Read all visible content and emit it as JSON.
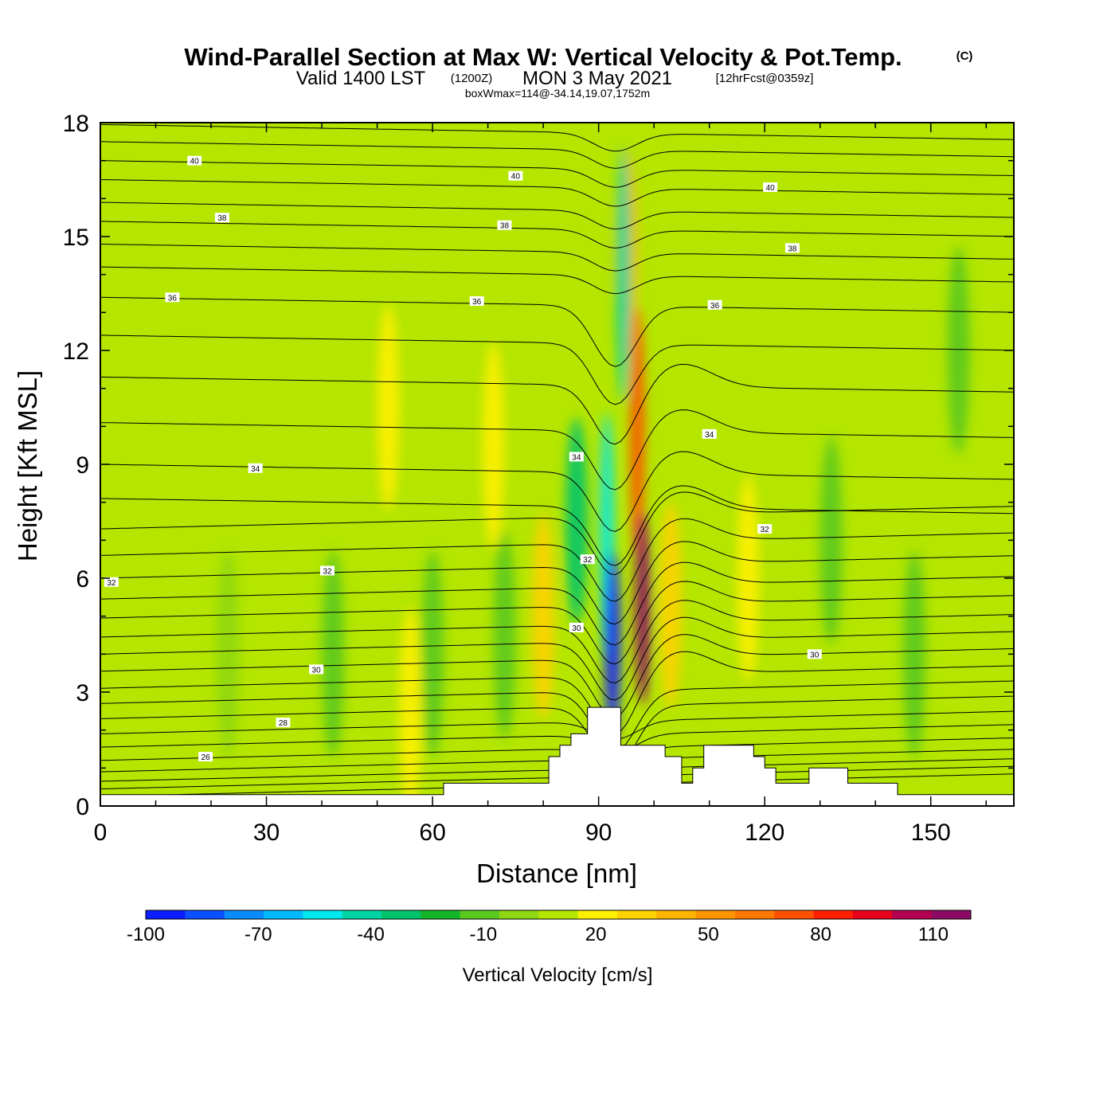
{
  "title": {
    "main": "Wind-Parallel Section at Max W: Vertical Velocity & Pot.Temp.",
    "copyright": "(C)",
    "valid_prefix": "Valid 1400 LST",
    "zulu": "(1200Z)",
    "date": "MON 3 May 2021",
    "forecast": "[12hrFcst@0359z]",
    "box_info": "boxWmax=114@-34.14,19.07,1752m"
  },
  "chart_data": {
    "type": "heatmap",
    "xlabel": "Distance [nm]",
    "ylabel": "Height [Kft MSL]",
    "xlim": [
      0,
      165
    ],
    "ylim": [
      0,
      18
    ],
    "x_ticks": [
      "0",
      "30",
      "60",
      "90",
      "120",
      "150"
    ],
    "y_ticks": [
      "0",
      "3",
      "6",
      "9",
      "12",
      "15",
      "18"
    ],
    "colorbar": {
      "title": "Vertical Velocity [cm/s]",
      "levels": [
        -100,
        -90,
        -80,
        -70,
        -60,
        -50,
        -40,
        -30,
        -20,
        -10,
        0,
        10,
        20,
        30,
        40,
        50,
        60,
        70,
        80,
        90,
        100,
        110,
        120
      ],
      "tick_labels": [
        "-100",
        "-70",
        "-40",
        "-10",
        "20",
        "50",
        "80",
        "110"
      ],
      "colors": [
        "#0a1eff",
        "#0a50ff",
        "#0a8cff",
        "#00b9ff",
        "#00e8ec",
        "#00d4a5",
        "#00c46c",
        "#14b428",
        "#5ac81e",
        "#8ed712",
        "#b4e600",
        "#fff000",
        "#ffd200",
        "#ffb400",
        "#ff9600",
        "#ff7800",
        "#ff5000",
        "#ff1e00",
        "#e6001e",
        "#b40050",
        "#8c0a64"
      ]
    },
    "velocity_features": [
      {
        "x": 86,
        "y": 7.5,
        "w": -35
      },
      {
        "x": 92.5,
        "y": 4.2,
        "w": -95
      },
      {
        "x": 91.5,
        "y": 7.0,
        "w": -55
      },
      {
        "x": 94.5,
        "y": 14,
        "w": -45
      },
      {
        "x": 98,
        "y": 5.2,
        "w": 114
      },
      {
        "x": 97,
        "y": 9.8,
        "w": 65
      },
      {
        "x": 95,
        "y": 14.5,
        "w": 35
      },
      {
        "x": 103,
        "y": 5.3,
        "w": 25
      },
      {
        "x": 80,
        "y": 5.0,
        "w": 20
      },
      {
        "x": 71,
        "y": 9.5,
        "w": 15
      },
      {
        "x": 52,
        "y": 10.5,
        "w": 12
      },
      {
        "x": 56,
        "y": 2.5,
        "w": 12
      },
      {
        "x": 117,
        "y": 6.0,
        "w": 12
      },
      {
        "x": 73,
        "y": 4.5,
        "w": -15
      },
      {
        "x": 60,
        "y": 4.0,
        "w": -15
      },
      {
        "x": 42,
        "y": 4.0,
        "w": -12
      },
      {
        "x": 23,
        "y": 4.0,
        "w": -10
      },
      {
        "x": 132,
        "y": 7.0,
        "w": -12
      },
      {
        "x": 147,
        "y": 4.0,
        "w": -18
      },
      {
        "x": 155,
        "y": 12.0,
        "w": -12
      }
    ],
    "theta_contour_labels": [
      {
        "x": 17,
        "y": 17.0,
        "text": "40"
      },
      {
        "x": 75,
        "y": 16.6,
        "text": "40"
      },
      {
        "x": 121,
        "y": 16.3,
        "text": "40"
      },
      {
        "x": 22,
        "y": 15.5,
        "text": "38"
      },
      {
        "x": 73,
        "y": 15.3,
        "text": "38"
      },
      {
        "x": 125,
        "y": 14.7,
        "text": "38"
      },
      {
        "x": 13,
        "y": 13.4,
        "text": "36"
      },
      {
        "x": 68,
        "y": 13.3,
        "text": "36"
      },
      {
        "x": 111,
        "y": 13.2,
        "text": "36"
      },
      {
        "x": 28,
        "y": 8.9,
        "text": "34"
      },
      {
        "x": 86,
        "y": 9.2,
        "text": "34"
      },
      {
        "x": 110,
        "y": 9.8,
        "text": "34"
      },
      {
        "x": 2,
        "y": 5.9,
        "text": "32"
      },
      {
        "x": 41,
        "y": 6.2,
        "text": "32"
      },
      {
        "x": 88,
        "y": 6.5,
        "text": "32"
      },
      {
        "x": 120,
        "y": 7.3,
        "text": "32"
      },
      {
        "x": 39,
        "y": 3.6,
        "text": "30"
      },
      {
        "x": 86,
        "y": 4.7,
        "text": "30"
      },
      {
        "x": 129,
        "y": 4.0,
        "text": "30"
      },
      {
        "x": 33,
        "y": 2.2,
        "text": "28"
      },
      {
        "x": 19,
        "y": 1.3,
        "text": "26"
      }
    ]
  }
}
